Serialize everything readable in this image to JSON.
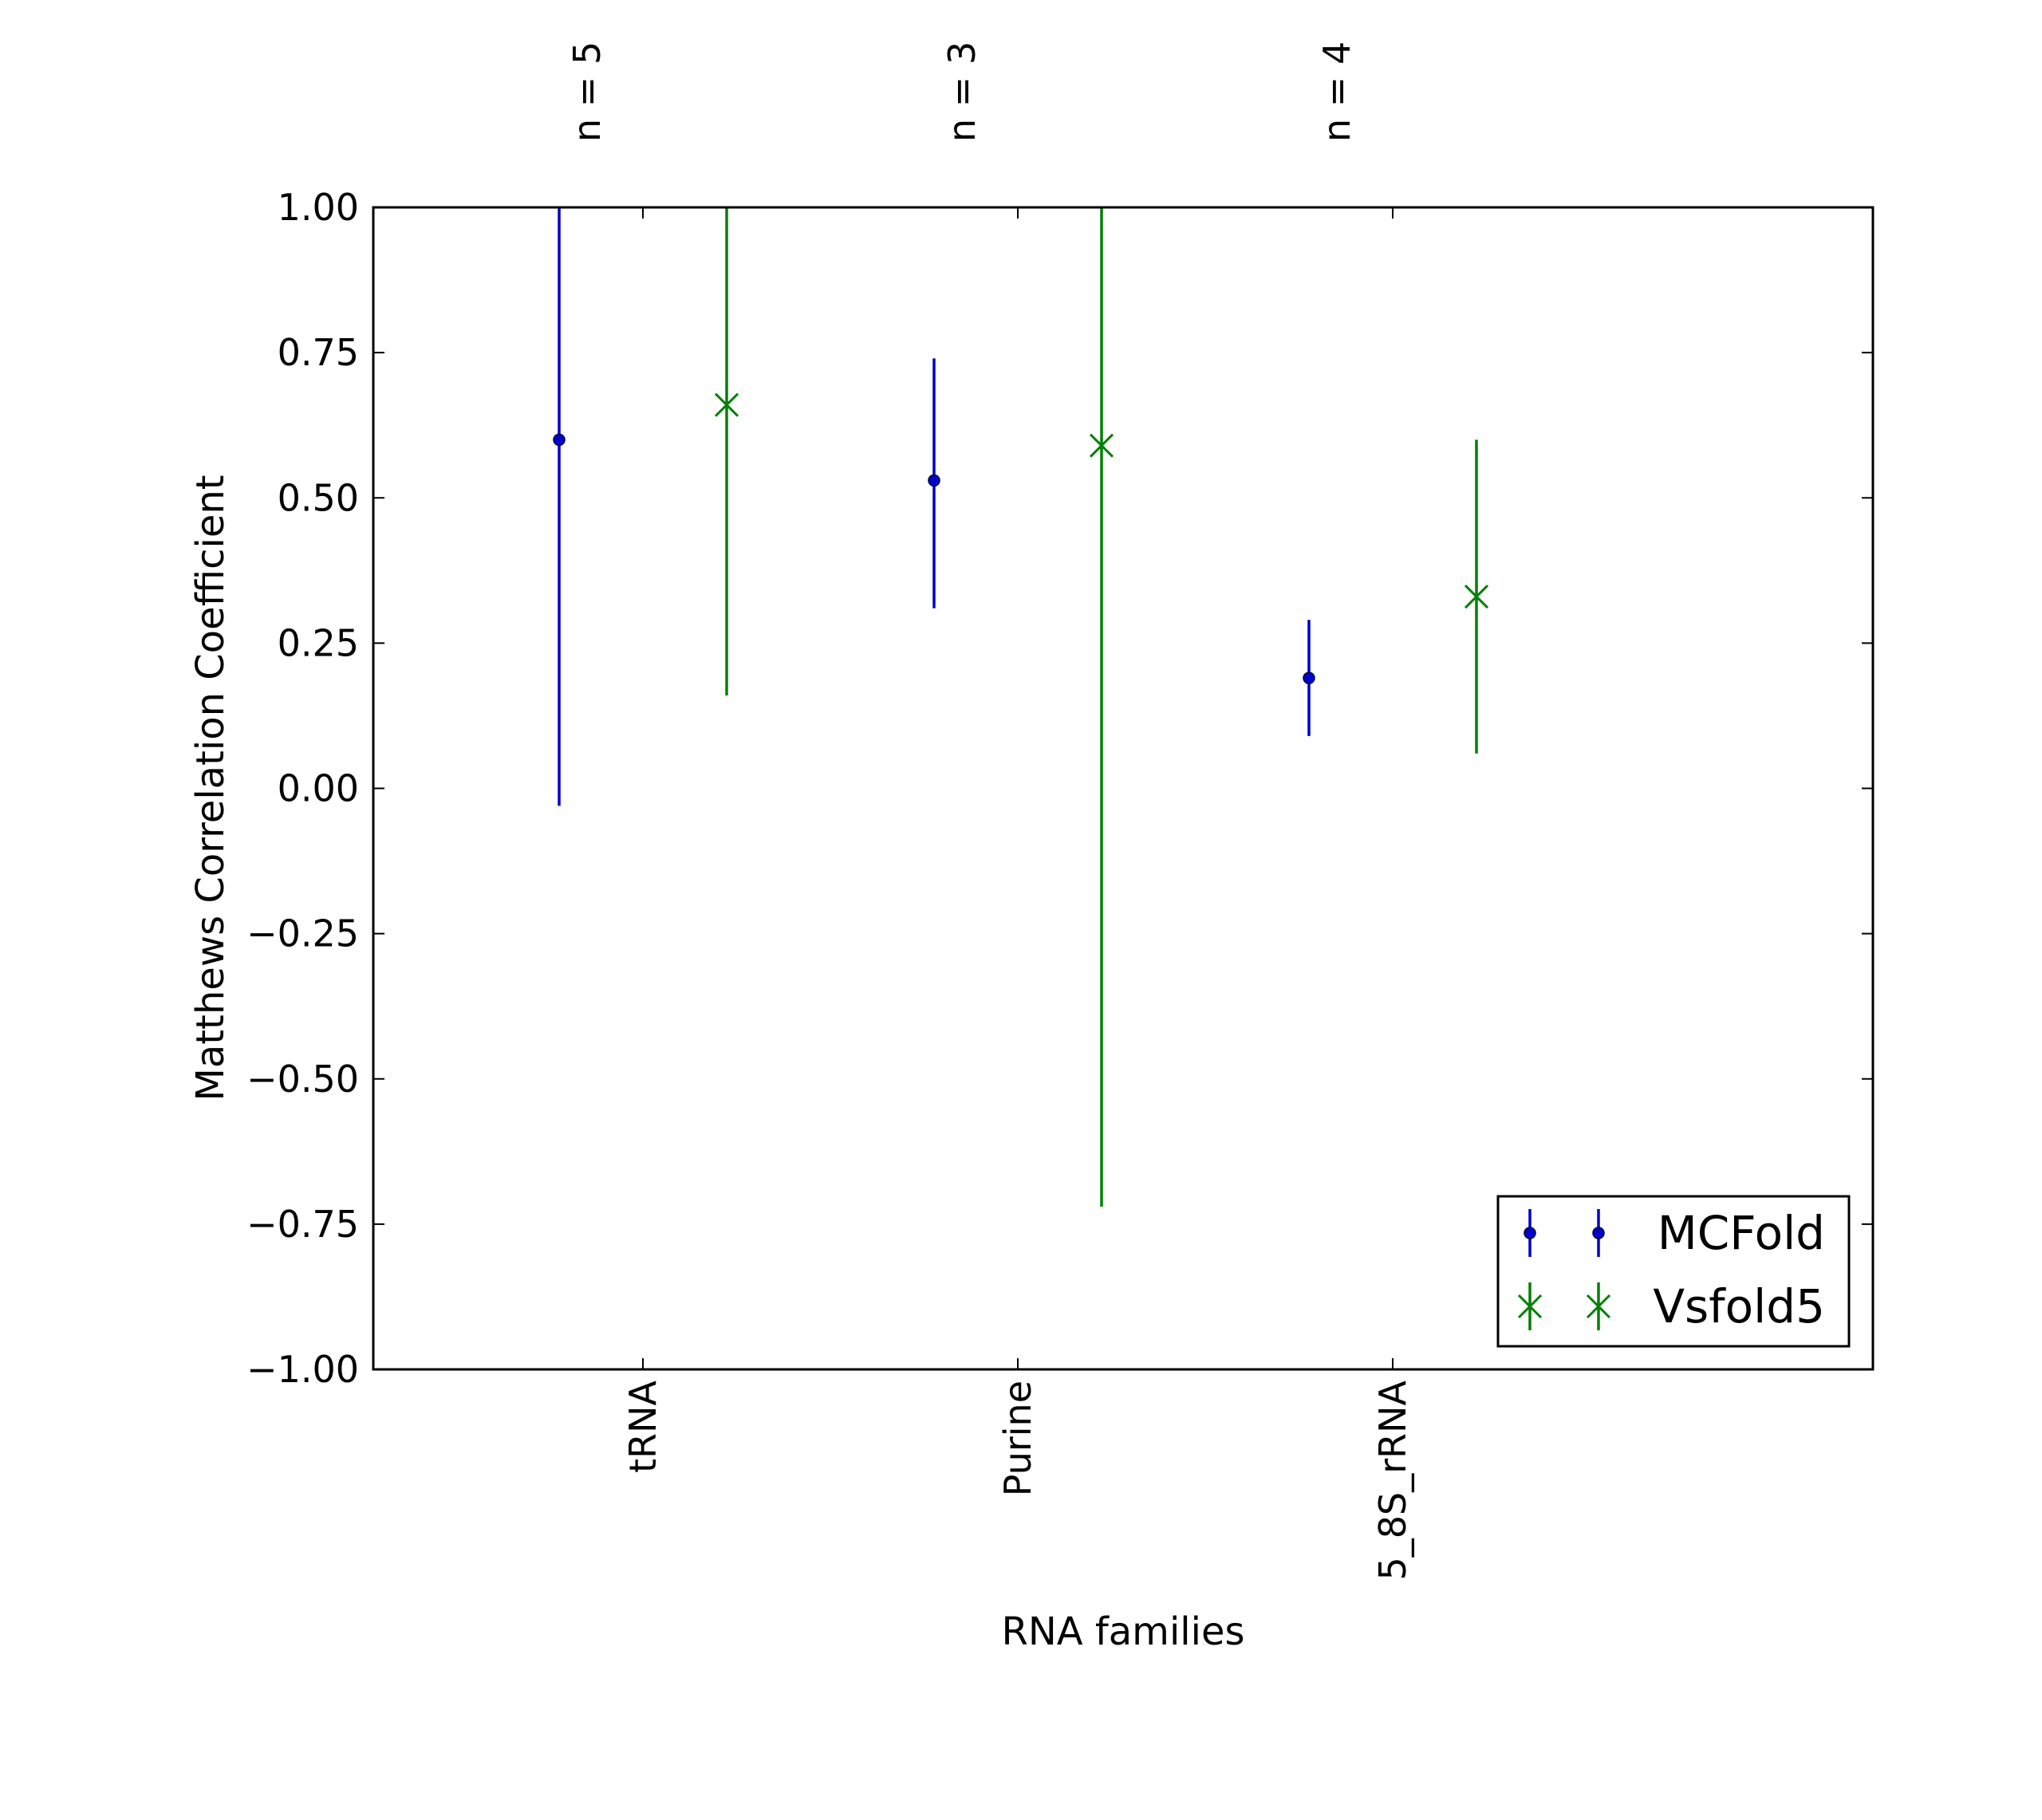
{
  "chart_data": {
    "type": "scatter",
    "xlabel": "RNA families",
    "ylabel": "Matthews Correlation Coefficient",
    "categories": [
      "tRNA",
      "Purine",
      "5_8S_rRNA"
    ],
    "top_annotations": [
      "n = 5",
      "n = 3",
      "n = 4"
    ],
    "ylim": [
      -1.0,
      1.0
    ],
    "yticks": [
      "1.00",
      "0.75",
      "0.50",
      "0.25",
      "0.00",
      "−0.25",
      "−0.50",
      "−0.75",
      "−1.00"
    ],
    "ytick_values": [
      1.0,
      0.75,
      0.5,
      0.25,
      0.0,
      -0.25,
      -0.5,
      -0.75,
      -1.0
    ],
    "grid": false,
    "legend_position": "lower-right",
    "series": [
      {
        "name": "MCFold",
        "color": "#0000cc",
        "marker": "dot",
        "values": [
          0.6,
          0.53,
          0.19
        ],
        "err_low": [
          -0.03,
          0.31,
          0.09
        ],
        "err_high": [
          1.0,
          0.74,
          0.29
        ]
      },
      {
        "name": "Vsfold5",
        "color": "#008000",
        "marker": "x",
        "values": [
          0.66,
          0.59,
          0.33
        ],
        "err_low": [
          0.16,
          -0.72,
          0.06
        ],
        "err_high": [
          1.0,
          1.0,
          0.6
        ]
      }
    ]
  }
}
